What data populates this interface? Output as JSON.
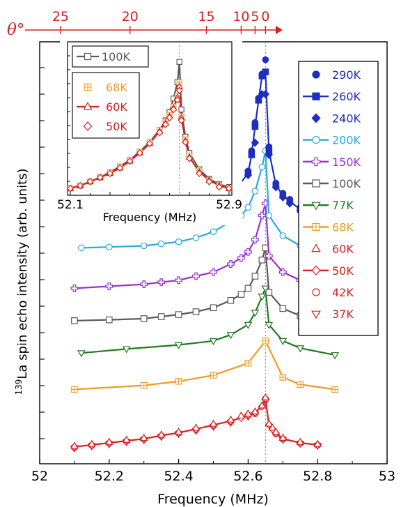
{
  "chart_data": {
    "type": "line",
    "xlabel": "Frequency (MHz)",
    "ylabel": "139La spin echo intensity (arb. units)",
    "ylabel_sup": "139",
    "ylabel_main": "La spin echo intensity (arb. units)",
    "xlim": [
      52.0,
      53.0
    ],
    "x_ticks": [
      "52",
      "52.2",
      "52.4",
      "52.6",
      "52.8",
      "53"
    ],
    "y_ticks_labeled": false,
    "grid": false,
    "legend_position": "right",
    "reference_line_x": 52.65,
    "top_axis": {
      "label": "θ°",
      "color": "#d61f1f",
      "ticks": [
        "25",
        "20",
        "15",
        "10",
        "5",
        "0"
      ],
      "tick_values": [
        25,
        20,
        15,
        10,
        5,
        0
      ],
      "tick_freqs": [
        52.06,
        52.26,
        52.48,
        52.58,
        52.62,
        52.65
      ]
    },
    "series": [
      {
        "name": "290K",
        "color": "#1c2fbf",
        "marker": "circle",
        "fill": true,
        "line": false,
        "x": [
          52.45,
          52.48,
          52.5,
          52.52,
          52.54,
          52.57,
          52.6,
          52.61,
          52.62,
          52.63,
          52.64,
          52.65,
          52.66,
          52.68,
          52.7,
          52.72,
          52.75,
          52.8
        ],
        "y": [
          0.615,
          0.62,
          0.63,
          0.64,
          0.655,
          0.675,
          0.71,
          0.76,
          0.83,
          0.89,
          0.95,
          0.985,
          0.77,
          0.68,
          0.655,
          0.64,
          0.62,
          0.61
        ]
      },
      {
        "name": "260K",
        "color": "#1c2fbf",
        "marker": "square",
        "fill": true,
        "line": true,
        "x": [
          52.45,
          52.48,
          52.5,
          52.52,
          52.54,
          52.57,
          52.6,
          52.61,
          52.62,
          52.63,
          52.64,
          52.65,
          52.66,
          52.68,
          52.7,
          52.72,
          52.75,
          52.8
        ],
        "y": [
          0.612,
          0.617,
          0.625,
          0.635,
          0.65,
          0.67,
          0.705,
          0.75,
          0.82,
          0.885,
          0.945,
          0.955,
          0.76,
          0.675,
          0.65,
          0.635,
          0.615,
          0.605
        ]
      },
      {
        "name": "240K",
        "color": "#1c2fbf",
        "marker": "diamond",
        "fill": true,
        "line": false,
        "x": [
          52.45,
          52.48,
          52.5,
          52.52,
          52.54,
          52.57,
          52.6,
          52.62,
          52.64,
          52.65,
          52.66,
          52.68,
          52.7,
          52.72,
          52.75,
          52.8
        ],
        "y": [
          0.61,
          0.615,
          0.622,
          0.63,
          0.645,
          0.665,
          0.7,
          0.78,
          0.9,
          0.9,
          0.75,
          0.67,
          0.645,
          0.63,
          0.612,
          0.6
        ]
      },
      {
        "name": "200K",
        "color": "#29a9e0",
        "marker": "circle",
        "fill": false,
        "line": true,
        "x": [
          52.12,
          52.2,
          52.3,
          52.35,
          52.4,
          52.45,
          52.5,
          52.55,
          52.58,
          52.6,
          52.62,
          52.64,
          52.65,
          52.66,
          52.7,
          52.75,
          52.8,
          52.85
        ],
        "y": [
          0.52,
          0.522,
          0.525,
          0.53,
          0.535,
          0.545,
          0.56,
          0.585,
          0.6,
          0.62,
          0.66,
          0.72,
          0.76,
          0.6,
          0.55,
          0.525,
          0.52,
          0.518
        ]
      },
      {
        "name": "150K",
        "color": "#9a2fd0",
        "marker": "plus",
        "fill": false,
        "line": true,
        "x": [
          52.1,
          52.2,
          52.3,
          52.35,
          52.4,
          52.45,
          52.5,
          52.55,
          52.58,
          52.6,
          52.62,
          52.64,
          52.65,
          52.66,
          52.7,
          52.75,
          52.8,
          52.85
        ],
        "y": [
          0.42,
          0.425,
          0.43,
          0.435,
          0.44,
          0.45,
          0.46,
          0.48,
          0.495,
          0.51,
          0.54,
          0.6,
          0.63,
          0.5,
          0.46,
          0.44,
          0.425,
          0.42
        ]
      },
      {
        "name": "100K",
        "color": "#5a5a5a",
        "marker": "square",
        "fill": false,
        "line": true,
        "x": [
          52.1,
          52.2,
          52.3,
          52.35,
          52.4,
          52.45,
          52.5,
          52.55,
          52.58,
          52.6,
          52.62,
          52.64,
          52.65,
          52.66,
          52.7,
          52.75,
          52.8,
          52.85
        ],
        "y": [
          0.34,
          0.342,
          0.345,
          0.35,
          0.355,
          0.362,
          0.372,
          0.39,
          0.405,
          0.42,
          0.45,
          0.49,
          0.52,
          0.41,
          0.37,
          0.352,
          0.342,
          0.338
        ]
      },
      {
        "name": "77K",
        "color": "#1f7a1f",
        "marker": "triangle-down",
        "fill": false,
        "line": true,
        "x": [
          52.12,
          52.25,
          52.4,
          52.5,
          52.55,
          52.6,
          52.62,
          52.64,
          52.65,
          52.66,
          52.7,
          52.75,
          52.85
        ],
        "y": [
          0.26,
          0.27,
          0.28,
          0.29,
          0.305,
          0.33,
          0.36,
          0.4,
          0.42,
          0.33,
          0.29,
          0.272,
          0.255
        ]
      },
      {
        "name": "68K",
        "color": "#f29a1f",
        "marker": "square-plus",
        "fill": false,
        "line": true,
        "x": [
          52.1,
          52.3,
          52.4,
          52.5,
          52.6,
          52.65,
          52.7,
          52.75,
          52.85
        ],
        "y": [
          0.17,
          0.18,
          0.19,
          0.205,
          0.235,
          0.29,
          0.2,
          0.182,
          0.17
        ]
      },
      {
        "name": "60K",
        "color": "#d61f1f",
        "marker": "triangle-up",
        "fill": false,
        "line": false,
        "x": [
          52.1,
          52.15,
          52.2,
          52.25,
          52.3,
          52.35,
          52.4,
          52.45,
          52.5,
          52.55,
          52.58,
          52.6,
          52.62,
          52.64,
          52.65,
          52.66,
          52.67,
          52.68,
          52.7,
          52.75,
          52.8
        ],
        "y": [
          0.03,
          0.035,
          0.04,
          0.045,
          0.05,
          0.058,
          0.065,
          0.075,
          0.085,
          0.095,
          0.105,
          0.11,
          0.115,
          0.13,
          0.15,
          0.085,
          0.075,
          0.065,
          0.05,
          0.04,
          0.035
        ]
      },
      {
        "name": "50K",
        "color": "#d61f1f",
        "marker": "diamond",
        "fill": false,
        "line": true,
        "x": [
          52.1,
          52.15,
          52.2,
          52.25,
          52.3,
          52.35,
          52.4,
          52.45,
          52.5,
          52.55,
          52.58,
          52.6,
          52.62,
          52.64,
          52.65,
          52.66,
          52.67,
          52.68,
          52.7,
          52.75,
          52.8
        ],
        "y": [
          0.028,
          0.033,
          0.038,
          0.043,
          0.048,
          0.056,
          0.063,
          0.072,
          0.082,
          0.092,
          0.1,
          0.108,
          0.113,
          0.128,
          0.148,
          0.083,
          0.072,
          0.062,
          0.048,
          0.038,
          0.033
        ]
      },
      {
        "name": "42K",
        "color": "#d61f1f",
        "marker": "circle",
        "fill": false,
        "line": false,
        "x": [
          52.1,
          52.15,
          52.2,
          52.25,
          52.3,
          52.35,
          52.4,
          52.45,
          52.5,
          52.55,
          52.6,
          52.62,
          52.65,
          52.68,
          52.7,
          52.75,
          52.8
        ],
        "y": [
          0.026,
          0.032,
          0.037,
          0.042,
          0.047,
          0.055,
          0.062,
          0.07,
          0.08,
          0.09,
          0.105,
          0.11,
          0.145,
          0.06,
          0.047,
          0.037,
          0.032
        ]
      },
      {
        "name": "37K",
        "color": "#d61f1f",
        "marker": "triangle-down",
        "fill": false,
        "line": false,
        "x": [
          52.1,
          52.15,
          52.2,
          52.25,
          52.3,
          52.35,
          52.4,
          52.45,
          52.5,
          52.55,
          52.6,
          52.65,
          52.7,
          52.75,
          52.8
        ],
        "y": [
          0.025,
          0.03,
          0.035,
          0.04,
          0.045,
          0.053,
          0.06,
          0.068,
          0.078,
          0.088,
          0.103,
          0.14,
          0.046,
          0.036,
          0.031
        ]
      }
    ],
    "inset": {
      "xlabel": "Frequency (MHz)",
      "x_ticks": [
        "52.1",
        "52.9"
      ],
      "xlim": [
        52.1,
        52.9
      ],
      "ylim": [
        0,
        1
      ],
      "reference_line_x": 52.65,
      "legend_groups": [
        [
          "100K"
        ],
        [
          "68K",
          "60K",
          "50K"
        ]
      ],
      "series": [
        {
          "name": "100K",
          "color": "#5a5a5a",
          "marker": "square",
          "fill": false,
          "line": true,
          "x": [
            52.1,
            52.15,
            52.2,
            52.25,
            52.3,
            52.35,
            52.4,
            52.45,
            52.5,
            52.55,
            52.58,
            52.6,
            52.62,
            52.64,
            52.65,
            52.66,
            52.68,
            52.7,
            52.75,
            52.8,
            52.85,
            52.9
          ],
          "y": [
            0.02,
            0.04,
            0.07,
            0.1,
            0.14,
            0.18,
            0.23,
            0.29,
            0.36,
            0.45,
            0.52,
            0.58,
            0.68,
            0.8,
            0.95,
            0.6,
            0.4,
            0.28,
            0.16,
            0.09,
            0.05,
            0.03
          ]
        },
        {
          "name": "68K",
          "color": "#f29a1f",
          "marker": "square-plus",
          "fill": false,
          "line": false,
          "x": [
            52.1,
            52.15,
            52.2,
            52.25,
            52.3,
            52.35,
            52.4,
            52.45,
            52.5,
            52.55,
            52.58,
            52.6,
            52.62,
            52.64,
            52.65,
            52.66,
            52.68,
            52.7,
            52.75,
            52.8,
            52.85,
            52.9
          ],
          "y": [
            0.02,
            0.04,
            0.07,
            0.1,
            0.14,
            0.18,
            0.23,
            0.29,
            0.36,
            0.45,
            0.51,
            0.56,
            0.62,
            0.7,
            0.8,
            0.55,
            0.38,
            0.26,
            0.15,
            0.08,
            0.04,
            0.02
          ]
        },
        {
          "name": "60K",
          "color": "#d61f1f",
          "marker": "triangle-up",
          "fill": false,
          "line": true,
          "x": [
            52.1,
            52.15,
            52.2,
            52.25,
            52.3,
            52.35,
            52.4,
            52.45,
            52.5,
            52.55,
            52.58,
            52.6,
            52.62,
            52.64,
            52.65,
            52.66,
            52.68,
            52.7,
            52.75,
            52.8,
            52.85,
            52.9
          ],
          "y": [
            0.02,
            0.04,
            0.07,
            0.1,
            0.13,
            0.17,
            0.22,
            0.28,
            0.35,
            0.44,
            0.5,
            0.55,
            0.61,
            0.69,
            0.77,
            0.54,
            0.37,
            0.25,
            0.14,
            0.08,
            0.04,
            0.02
          ]
        },
        {
          "name": "50K",
          "color": "#d61f1f",
          "marker": "diamond",
          "fill": false,
          "line": false,
          "x": [
            52.1,
            52.15,
            52.2,
            52.25,
            52.3,
            52.35,
            52.4,
            52.45,
            52.5,
            52.55,
            52.58,
            52.6,
            52.62,
            52.64,
            52.65,
            52.66,
            52.68,
            52.7,
            52.75,
            52.8,
            52.85,
            52.9
          ],
          "y": [
            0.02,
            0.04,
            0.07,
            0.1,
            0.13,
            0.17,
            0.22,
            0.28,
            0.35,
            0.43,
            0.49,
            0.54,
            0.6,
            0.67,
            0.74,
            0.52,
            0.36,
            0.24,
            0.13,
            0.07,
            0.03,
            0.02
          ]
        }
      ]
    }
  }
}
